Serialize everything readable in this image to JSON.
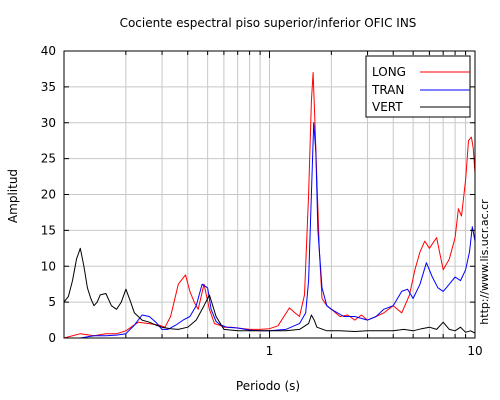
{
  "chart_data": {
    "type": "line",
    "title": "Cociente espectral piso superior/inferior  OFIC INS",
    "xlabel": "Periodo (s)",
    "ylabel": "Amplitud",
    "xscale": "log",
    "xlim": [
      0.1,
      10
    ],
    "ylim": [
      0,
      40
    ],
    "x_ticks": [
      {
        "value": 1,
        "label": "1"
      },
      {
        "value": 10,
        "label": "10"
      }
    ],
    "y_ticks": [
      0,
      5,
      10,
      15,
      20,
      25,
      30,
      35,
      40
    ],
    "y_tick_labels": [
      "0",
      "5",
      "10",
      "15",
      "20",
      "25",
      "30",
      "35",
      "40"
    ],
    "grid": true,
    "legend_position": "top-right",
    "source_note": "http://www.lis.ucr.ac.cr",
    "series": [
      {
        "name": "LONG",
        "color": "#ff0000",
        "x": [
          0.1,
          0.12,
          0.14,
          0.16,
          0.18,
          0.2,
          0.23,
          0.26,
          0.29,
          0.31,
          0.33,
          0.36,
          0.39,
          0.41,
          0.43,
          0.45,
          0.48,
          0.51,
          0.54,
          0.57,
          0.6,
          0.65,
          0.7,
          0.8,
          0.9,
          1.0,
          1.1,
          1.25,
          1.33,
          1.4,
          1.48,
          1.55,
          1.6,
          1.63,
          1.66,
          1.7,
          1.75,
          1.8,
          1.9,
          2.0,
          2.2,
          2.4,
          2.6,
          2.8,
          3.0,
          3.3,
          3.6,
          4.0,
          4.4,
          4.8,
          5.1,
          5.4,
          5.7,
          6.0,
          6.5,
          7.0,
          7.5,
          8.0,
          8.3,
          8.6,
          9.0,
          9.3,
          9.6,
          9.8,
          10.0
        ],
        "y": [
          0,
          0.6,
          0.3,
          0.6,
          0.6,
          1.0,
          2.2,
          2.0,
          1.8,
          1.5,
          3.0,
          7.5,
          8.8,
          6.5,
          5.0,
          4.0,
          7.5,
          4.0,
          2.0,
          1.8,
          1.5,
          1.5,
          1.4,
          1.2,
          1.2,
          1.3,
          1.7,
          4.2,
          3.5,
          3.0,
          6.0,
          20.0,
          33.0,
          37.0,
          31.0,
          22.0,
          12.0,
          5.5,
          4.5,
          4.0,
          3.0,
          3.2,
          2.5,
          3.2,
          2.5,
          3.0,
          3.5,
          4.5,
          3.5,
          6.0,
          9.5,
          12.0,
          13.5,
          12.5,
          14.0,
          9.5,
          11.0,
          14.0,
          18.0,
          17.0,
          22.0,
          27.5,
          28.0,
          26.5,
          23.0
        ]
      },
      {
        "name": "TRAN",
        "color": "#0000ff",
        "x": [
          0.1,
          0.12,
          0.14,
          0.16,
          0.18,
          0.2,
          0.22,
          0.24,
          0.26,
          0.28,
          0.3,
          0.32,
          0.35,
          0.38,
          0.41,
          0.44,
          0.47,
          0.5,
          0.52,
          0.55,
          0.58,
          0.62,
          0.7,
          0.8,
          0.9,
          1.0,
          1.2,
          1.4,
          1.5,
          1.55,
          1.6,
          1.64,
          1.68,
          1.72,
          1.8,
          1.9,
          2.0,
          2.3,
          2.6,
          3.0,
          3.3,
          3.6,
          4.0,
          4.4,
          4.7,
          5.0,
          5.4,
          5.8,
          6.2,
          6.6,
          7.0,
          7.5,
          8.0,
          8.5,
          9.0,
          9.4,
          9.7,
          10.0
        ],
        "y": [
          0,
          0,
          0.3,
          0.3,
          0.4,
          0.6,
          1.8,
          3.2,
          3.0,
          2.2,
          1.2,
          1.2,
          1.8,
          2.5,
          3.0,
          4.5,
          7.5,
          7.0,
          4.0,
          2.3,
          1.8,
          1.5,
          1.4,
          1.1,
          1.0,
          1.0,
          1.2,
          2.0,
          3.5,
          8.0,
          20.0,
          30.0,
          26.0,
          15.0,
          7.0,
          4.5,
          4.0,
          3.0,
          3.0,
          2.5,
          3.0,
          4.0,
          4.5,
          6.5,
          6.8,
          5.5,
          7.5,
          10.5,
          8.5,
          7.0,
          6.5,
          7.5,
          8.5,
          8.0,
          9.5,
          12.0,
          15.5,
          13.5
        ]
      },
      {
        "name": "VERT",
        "color": "#000000",
        "x": [
          0.1,
          0.105,
          0.11,
          0.115,
          0.12,
          0.125,
          0.13,
          0.135,
          0.14,
          0.145,
          0.15,
          0.16,
          0.17,
          0.18,
          0.19,
          0.2,
          0.21,
          0.22,
          0.24,
          0.26,
          0.28,
          0.3,
          0.33,
          0.36,
          0.4,
          0.44,
          0.48,
          0.51,
          0.55,
          0.6,
          0.7,
          0.8,
          0.9,
          1.0,
          1.2,
          1.4,
          1.55,
          1.6,
          1.65,
          1.7,
          1.9,
          2.2,
          2.6,
          3.0,
          3.5,
          4.0,
          4.5,
          5.0,
          5.5,
          6.0,
          6.5,
          7.0,
          7.5,
          8.0,
          8.5,
          9.0,
          9.5,
          10.0
        ],
        "y": [
          5.0,
          5.8,
          8.0,
          11.0,
          12.5,
          10.0,
          7.0,
          5.5,
          4.5,
          5.0,
          6.0,
          6.2,
          4.5,
          4.0,
          5.0,
          6.8,
          5.2,
          3.5,
          2.5,
          2.2,
          1.8,
          1.5,
          1.3,
          1.2,
          1.5,
          2.5,
          4.5,
          6.0,
          3.0,
          1.2,
          1.0,
          1.0,
          1.0,
          1.0,
          1.0,
          1.2,
          2.0,
          3.2,
          2.5,
          1.5,
          1.0,
          1.0,
          0.9,
          1.0,
          1.0,
          1.0,
          1.2,
          1.0,
          1.3,
          1.5,
          1.2,
          2.2,
          1.2,
          1.0,
          1.5,
          0.8,
          1.0,
          0.7
        ]
      }
    ]
  }
}
